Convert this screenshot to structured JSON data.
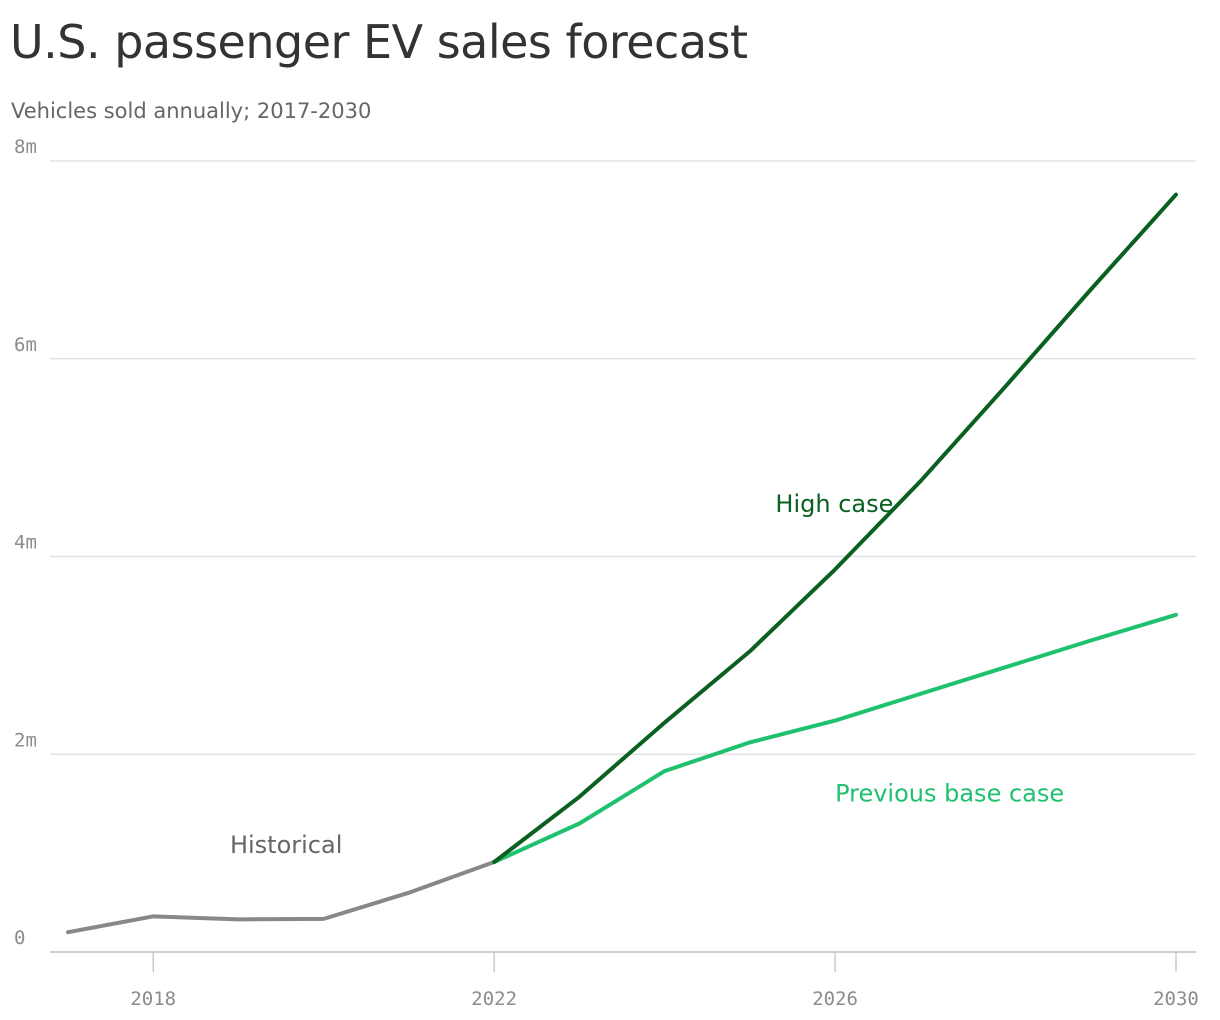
{
  "title": "U.S. passenger EV sales forecast",
  "subtitle": "Vehicles sold annually; 2017-2030",
  "chart_data": {
    "type": "line",
    "title": "U.S. passenger EV sales forecast",
    "subtitle": "Vehicles sold annually; 2017-2030",
    "xlabel": "",
    "ylabel": "",
    "xlim": [
      2017,
      2030
    ],
    "ylim": [
      0,
      8000000
    ],
    "y_ticks": [
      {
        "value": 0,
        "label": "0"
      },
      {
        "value": 2000000,
        "label": "2m"
      },
      {
        "value": 4000000,
        "label": "4m"
      },
      {
        "value": 6000000,
        "label": "6m"
      },
      {
        "value": 8000000,
        "label": "8m"
      }
    ],
    "x_ticks": [
      {
        "value": 2018,
        "label": "2018"
      },
      {
        "value": 2022,
        "label": "2022"
      },
      {
        "value": 2026,
        "label": "2026"
      },
      {
        "value": 2030,
        "label": "2030"
      }
    ],
    "grid": "horizontal",
    "legend": "none",
    "series": [
      {
        "name": "Historical",
        "color": "#888888",
        "points": [
          {
            "x": 2017,
            "y": 200000
          },
          {
            "x": 2018,
            "y": 360000
          },
          {
            "x": 2019,
            "y": 330000
          },
          {
            "x": 2020,
            "y": 335000
          },
          {
            "x": 2021,
            "y": 600000
          },
          {
            "x": 2022,
            "y": 910000
          }
        ]
      },
      {
        "name": "High case",
        "color": "#0a6020",
        "points": [
          {
            "x": 2022,
            "y": 910000
          },
          {
            "x": 2023,
            "y": 1570000
          },
          {
            "x": 2024,
            "y": 2320000
          },
          {
            "x": 2025,
            "y": 3040000
          },
          {
            "x": 2026,
            "y": 3870000
          },
          {
            "x": 2027,
            "y": 4760000
          },
          {
            "x": 2028,
            "y": 5720000
          },
          {
            "x": 2029,
            "y": 6700000
          },
          {
            "x": 2030,
            "y": 7660000
          }
        ]
      },
      {
        "name": "Previous base case",
        "color": "#1ec16e",
        "points": [
          {
            "x": 2022,
            "y": 910000
          },
          {
            "x": 2023,
            "y": 1300000
          },
          {
            "x": 2024,
            "y": 1830000
          },
          {
            "x": 2025,
            "y": 2120000
          },
          {
            "x": 2026,
            "y": 2340000
          },
          {
            "x": 2027,
            "y": 2610000
          },
          {
            "x": 2028,
            "y": 2880000
          },
          {
            "x": 2029,
            "y": 3150000
          },
          {
            "x": 2030,
            "y": 3410000
          }
        ]
      }
    ],
    "annotations": [
      {
        "text": "Historical",
        "series": "Historical",
        "color": "#666666",
        "x": 2018.9,
        "y": 1000000
      },
      {
        "text": "High case",
        "series": "High case",
        "color": "#0a6020",
        "x": 2025.3,
        "y": 4450000
      },
      {
        "text": "Previous base case",
        "series": "Previous base case",
        "color": "#1ec16e",
        "x": 2026.0,
        "y": 1520000
      }
    ]
  }
}
